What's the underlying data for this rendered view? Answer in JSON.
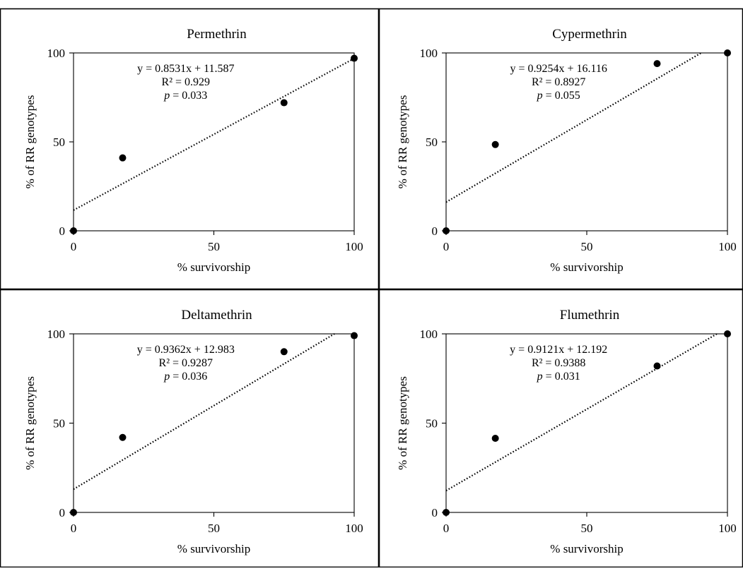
{
  "chart_data": [
    {
      "type": "scatter",
      "title": "Permethrin",
      "xlabel": "% survivorship",
      "ylabel": "% of RR genotypes",
      "xlim": [
        0,
        100
      ],
      "ylim": [
        0,
        100
      ],
      "xticks": [
        "0",
        "50",
        "100"
      ],
      "yticks": [
        "0",
        "50",
        "100"
      ],
      "points": [
        {
          "x": 0,
          "y": 0
        },
        {
          "x": 17.5,
          "y": 41
        },
        {
          "x": 75,
          "y": 72
        },
        {
          "x": 100,
          "y": 97
        }
      ],
      "trendline": {
        "slope": 0.8531,
        "intercept": 11.587,
        "style": "dotted"
      },
      "annotations": {
        "equation": "y = 0.8531x + 11.587",
        "r2": "R² = 0.929",
        "p_label": "p",
        "p_value": " = 0.033"
      }
    },
    {
      "type": "scatter",
      "title": "Cypermethrin",
      "xlabel": "% survivorship",
      "ylabel": "% of RR genotypes",
      "xlim": [
        0,
        100
      ],
      "ylim": [
        0,
        100
      ],
      "xticks": [
        "0",
        "50",
        "100"
      ],
      "yticks": [
        "0",
        "50",
        "100"
      ],
      "points": [
        {
          "x": 0,
          "y": 0
        },
        {
          "x": 17.5,
          "y": 48.5
        },
        {
          "x": 75,
          "y": 94
        },
        {
          "x": 100,
          "y": 100
        }
      ],
      "trendline": {
        "slope": 0.9254,
        "intercept": 16.116,
        "style": "dotted"
      },
      "annotations": {
        "equation": "y = 0.9254x + 16.116",
        "r2": "R² = 0.8927",
        "p_label": "p",
        "p_value": " = 0.055"
      }
    },
    {
      "type": "scatter",
      "title": "Deltamethrin",
      "xlabel": "% survivorship",
      "ylabel": "% of RR genotypes",
      "xlim": [
        0,
        100
      ],
      "ylim": [
        0,
        100
      ],
      "xticks": [
        "0",
        "50",
        "100"
      ],
      "yticks": [
        "0",
        "50",
        "100"
      ],
      "points": [
        {
          "x": 0,
          "y": 0
        },
        {
          "x": 17.5,
          "y": 42
        },
        {
          "x": 75,
          "y": 90
        },
        {
          "x": 100,
          "y": 99
        }
      ],
      "trendline": {
        "slope": 0.9362,
        "intercept": 12.983,
        "style": "dotted"
      },
      "annotations": {
        "equation": "y = 0.9362x + 12.983",
        "r2": "R² = 0.9287",
        "p_label": "p",
        "p_value": " = 0.036"
      }
    },
    {
      "type": "scatter",
      "title": "Flumethrin",
      "xlabel": "% survivorship",
      "ylabel": "% of RR genotypes",
      "xlim": [
        0,
        100
      ],
      "ylim": [
        0,
        100
      ],
      "xticks": [
        "0",
        "50",
        "100"
      ],
      "yticks": [
        "0",
        "50",
        "100"
      ],
      "points": [
        {
          "x": 0,
          "y": 0
        },
        {
          "x": 17.5,
          "y": 41.5
        },
        {
          "x": 75,
          "y": 82
        },
        {
          "x": 100,
          "y": 100
        }
      ],
      "trendline": {
        "slope": 0.9121,
        "intercept": 12.192,
        "style": "dotted"
      },
      "annotations": {
        "equation": "y = 0.9121x + 12.192",
        "r2": "R² = 0.9388",
        "p_label": "p",
        "p_value": " = 0.031"
      }
    }
  ]
}
